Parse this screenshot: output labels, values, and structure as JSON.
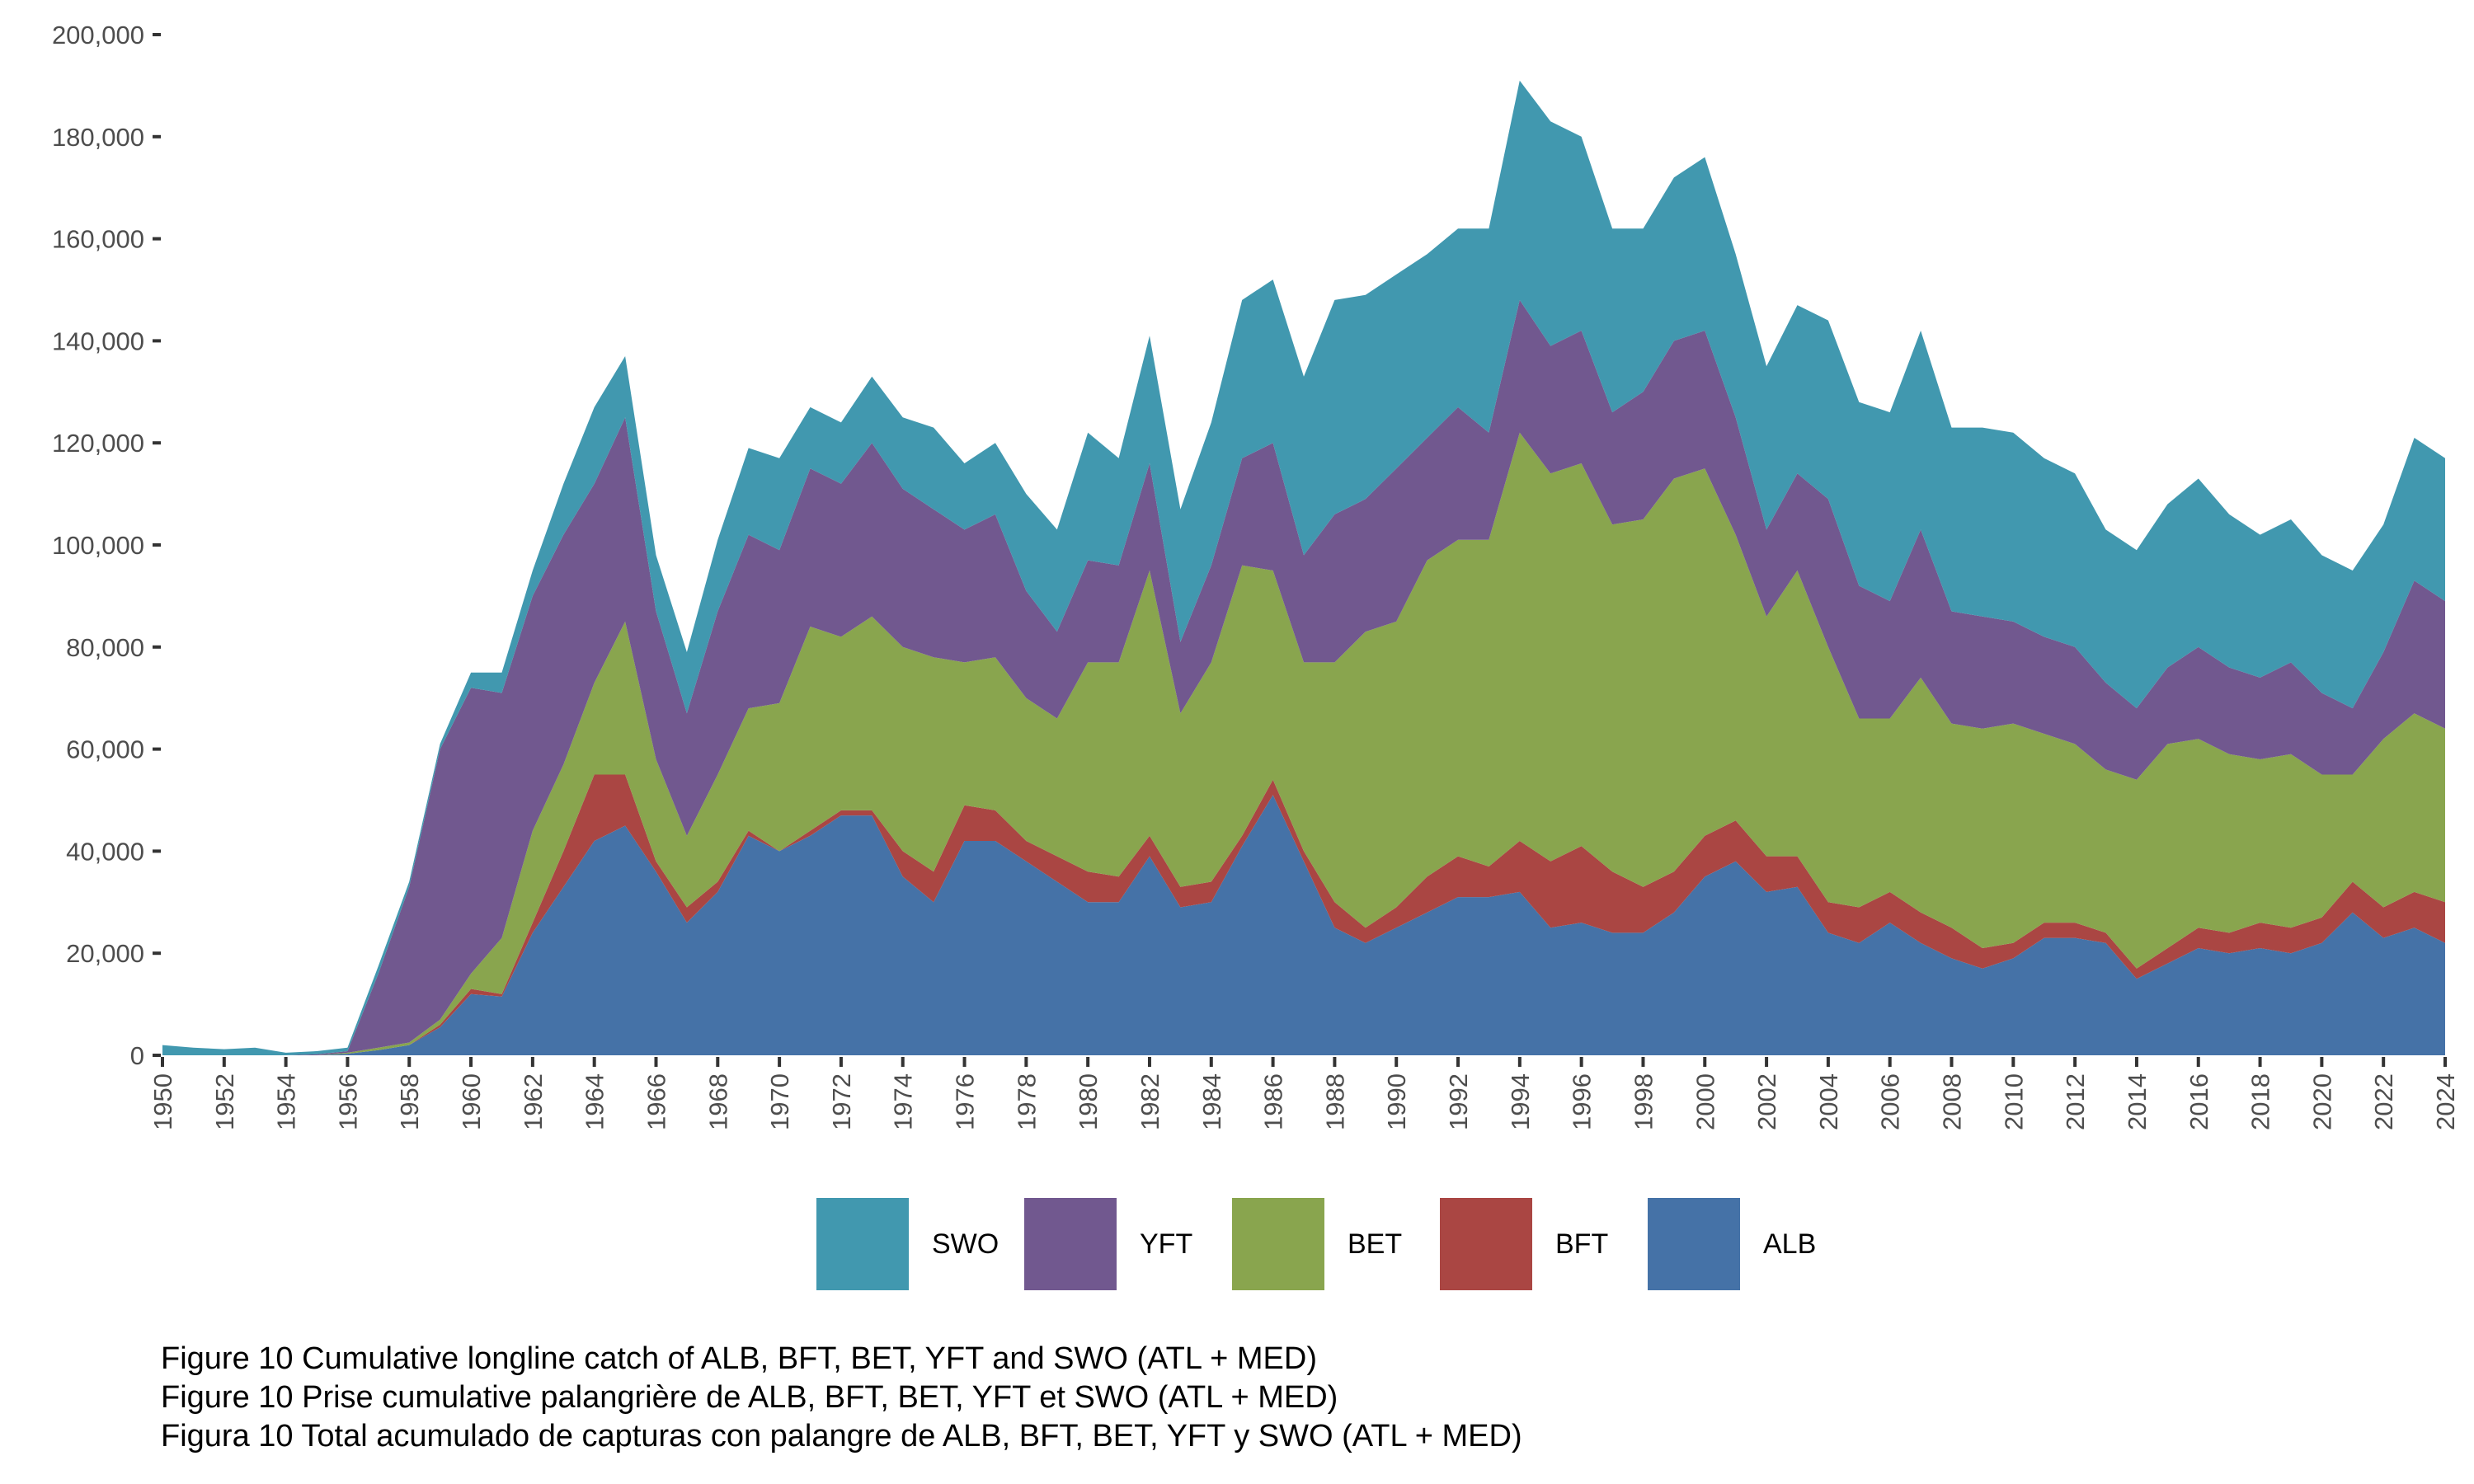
{
  "chart_data": {
    "type": "area",
    "stacked": true,
    "title": "",
    "xlabel": "",
    "ylabel": "",
    "ylim": [
      0,
      200000
    ],
    "xlim": [
      1950,
      2024
    ],
    "yticks": [
      0,
      20000,
      40000,
      60000,
      80000,
      100000,
      120000,
      140000,
      160000,
      180000,
      200000
    ],
    "ytick_labels": [
      "0",
      "20,000",
      "40,000",
      "60,000",
      "80,000",
      "100,000",
      "120,000",
      "140,000",
      "160,000",
      "180,000",
      "200,000"
    ],
    "xtick_labels": [
      "1950",
      "1952",
      "1954",
      "1956",
      "1958",
      "1960",
      "1962",
      "1964",
      "1966",
      "1968",
      "1970",
      "1972",
      "1974",
      "1976",
      "1978",
      "1980",
      "1982",
      "1984",
      "1986",
      "1988",
      "1990",
      "1992",
      "1994",
      "1996",
      "1998",
      "2000",
      "2002",
      "2004",
      "2006",
      "2008",
      "2010",
      "2012",
      "2014",
      "2016",
      "2018",
      "2020",
      "2022",
      "2024"
    ],
    "grid": false,
    "legend_position": "bottom",
    "x": [
      1950,
      1951,
      1952,
      1953,
      1954,
      1955,
      1956,
      1957,
      1958,
      1959,
      1960,
      1961,
      1962,
      1963,
      1964,
      1965,
      1966,
      1967,
      1968,
      1969,
      1970,
      1971,
      1972,
      1973,
      1974,
      1975,
      1976,
      1977,
      1978,
      1979,
      1980,
      1981,
      1982,
      1983,
      1984,
      1985,
      1986,
      1987,
      1988,
      1989,
      1990,
      1991,
      1992,
      1993,
      1994,
      1995,
      1996,
      1997,
      1998,
      1999,
      2000,
      2001,
      2002,
      2003,
      2004,
      2005,
      2006,
      2007,
      2008,
      2009,
      2010,
      2011,
      2012,
      2013,
      2014,
      2015,
      2016,
      2017,
      2018,
      2019,
      2020,
      2021,
      2022,
      2023,
      2024
    ],
    "series": [
      {
        "name": "ALB",
        "color": "#4572a7",
        "values": [
          0,
          0,
          0,
          0,
          0,
          0,
          300,
          1000,
          2000,
          5500,
          12000,
          11500,
          24000,
          33000,
          42000,
          45000,
          36000,
          26000,
          32000,
          43000,
          40000,
          43000,
          47000,
          47000,
          35000,
          30000,
          42000,
          42000,
          38000,
          34000,
          30000,
          30000,
          39000,
          29000,
          30000,
          41000,
          51000,
          38000,
          25000,
          22000,
          25000,
          28000,
          31000,
          31000,
          32000,
          25000,
          26000,
          24000,
          24000,
          28000,
          35000,
          38000,
          32000,
          33000,
          24000,
          22000,
          26000,
          22000,
          19000,
          17000,
          19000,
          23000,
          23000,
          22000,
          15000,
          18000,
          21000,
          20000,
          21000,
          20000,
          22000,
          28000,
          23000,
          25000,
          22000
        ]
      },
      {
        "name": "BFT",
        "color": "#aa4643",
        "values": [
          0,
          0,
          0,
          0,
          0,
          0,
          0,
          0,
          0,
          500,
          1000,
          500,
          2000,
          7000,
          13000,
          10000,
          2000,
          3000,
          2000,
          1000,
          0,
          1000,
          1000,
          1000,
          5000,
          6000,
          7000,
          6000,
          4000,
          5000,
          6000,
          5000,
          4000,
          4000,
          4000,
          2000,
          3000,
          2000,
          5000,
          3000,
          4000,
          7000,
          8000,
          6000,
          10000,
          13000,
          15000,
          12000,
          9000,
          8000,
          8000,
          8000,
          7000,
          6000,
          6000,
          7000,
          6000,
          6000,
          6000,
          4000,
          3000,
          3000,
          3000,
          2000,
          2000,
          3000,
          4000,
          4000,
          5000,
          5000,
          5000,
          6000,
          6000,
          7000,
          8000
        ]
      },
      {
        "name": "BET",
        "color": "#89a54e",
        "values": [
          0,
          0,
          0,
          0,
          0,
          0,
          200,
          500,
          500,
          1000,
          3000,
          11000,
          18000,
          17000,
          18000,
          30000,
          20000,
          14000,
          21000,
          24000,
          29000,
          40000,
          34000,
          38000,
          40000,
          42000,
          28000,
          30000,
          28000,
          27000,
          41000,
          42000,
          52000,
          34000,
          43000,
          53000,
          41000,
          37000,
          47000,
          58000,
          56000,
          62000,
          62000,
          64000,
          80000,
          76000,
          75000,
          68000,
          72000,
          77000,
          72000,
          56000,
          47000,
          56000,
          50000,
          37000,
          34000,
          46000,
          40000,
          43000,
          43000,
          37000,
          35000,
          32000,
          37000,
          40000,
          37000,
          35000,
          32000,
          34000,
          28000,
          21000,
          33000,
          35000,
          34000
        ]
      },
      {
        "name": "YFT",
        "color": "#71588f",
        "values": [
          0,
          0,
          0,
          0,
          0,
          200,
          300,
          14500,
          30500,
          53000,
          56000,
          48000,
          46000,
          45000,
          39000,
          40000,
          29000,
          24000,
          32000,
          34000,
          30000,
          31000,
          30000,
          34000,
          31000,
          29000,
          26000,
          28000,
          21000,
          17000,
          20000,
          19000,
          21000,
          14000,
          19000,
          21000,
          25000,
          21000,
          29000,
          26000,
          30000,
          24000,
          26000,
          21000,
          26000,
          25000,
          26000,
          22000,
          25000,
          27000,
          27000,
          23000,
          17000,
          19000,
          29000,
          26000,
          23000,
          29000,
          22000,
          22000,
          20000,
          19000,
          19000,
          17000,
          14000,
          15000,
          18000,
          17000,
          16000,
          18000,
          16000,
          13000,
          17000,
          26000,
          25000
        ]
      },
      {
        "name": "SWO",
        "color": "#4198af",
        "values": [
          2000,
          1500,
          1200,
          1500,
          500,
          600,
          700,
          1500,
          1000,
          1000,
          3000,
          4000,
          5000,
          10000,
          15000,
          12000,
          11000,
          12000,
          14000,
          17000,
          18000,
          12000,
          12000,
          13000,
          14000,
          16000,
          13000,
          14000,
          19000,
          20000,
          25000,
          21000,
          25000,
          26000,
          28000,
          31000,
          32000,
          35000,
          42000,
          40000,
          38000,
          36000,
          35000,
          40000,
          43000,
          44000,
          38000,
          36000,
          32000,
          32000,
          34000,
          32000,
          32000,
          33000,
          35000,
          36000,
          37000,
          39000,
          36000,
          37000,
          37000,
          35000,
          34000,
          30000,
          31000,
          32000,
          33000,
          30000,
          28000,
          28000,
          27000,
          27000,
          25000,
          28000,
          28000
        ]
      }
    ]
  },
  "legend": {
    "items": [
      {
        "label": "SWO",
        "color": "#4198af"
      },
      {
        "label": "YFT",
        "color": "#71588f"
      },
      {
        "label": "BET",
        "color": "#89a54e"
      },
      {
        "label": "BFT",
        "color": "#aa4643"
      },
      {
        "label": "ALB",
        "color": "#4572a7"
      }
    ]
  },
  "caption": {
    "line_en": "Figure 10 Cumulative longline catch of ALB, BFT, BET, YFT and SWO (ATL + MED)",
    "line_fr": "Figure 10 Prise cumulative palangrière de ALB, BFT, BET, YFT et SWO (ATL + MED)",
    "line_es": "Figura 10 Total acumulado de capturas con palangre de ALB, BFT, BET, YFT y SWO (ATL + MED)"
  }
}
